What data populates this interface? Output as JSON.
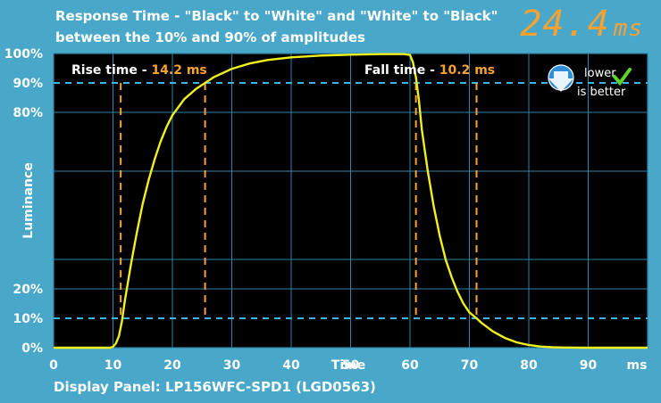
{
  "title_line1": "Response Time - \"Black\" to \"White\" and \"White\" to \"Black\"",
  "title_line2": "between the 10% and 90% of amplitudes",
  "big_value": "24.4",
  "big_unit": "ms",
  "footer": "Display Panel: LP156WFC-SPD1 (LGD0563)",
  "badge": {
    "line1": "lower",
    "line2": "is better"
  },
  "colors": {
    "background": "#49a7c9",
    "plot_bg": "#000000",
    "grid": "#2d86a8",
    "curve": "#f0f01e",
    "markers": "#f7a233",
    "threshold": "#3bb4e6"
  },
  "chart_data": {
    "type": "line",
    "xlabel": "Time",
    "xunit": "ms",
    "ylabel": "Luminance",
    "xlim": [
      0,
      100
    ],
    "ylim": [
      0,
      100
    ],
    "x_ticks": [
      0,
      10,
      20,
      30,
      40,
      50,
      60,
      70,
      80,
      90
    ],
    "y_ticks": [
      {
        "value": 0,
        "label": "0%"
      },
      {
        "value": 10,
        "label": "10%"
      },
      {
        "value": 20,
        "label": "20%"
      },
      {
        "value": 80,
        "label": "80%"
      },
      {
        "value": 90,
        "label": "90%"
      },
      {
        "value": 100,
        "label": "100%"
      }
    ],
    "grid": true,
    "thresholds": [
      10,
      90
    ],
    "rise": {
      "label": "Rise time - ",
      "value": "14.2 ms",
      "start": 11.3,
      "end": 25.5
    },
    "fall": {
      "label": "Fall time - ",
      "value": "10.2 ms",
      "start": 61.0,
      "end": 71.2
    },
    "series": [
      {
        "x": [
          0,
          9.5,
          10,
          10.5,
          11,
          11.5,
          12,
          13,
          14,
          15,
          16,
          17,
          18,
          19,
          20,
          22,
          24,
          25.5,
          27,
          30,
          33,
          36,
          40,
          45,
          50,
          55,
          59,
          60,
          60.5,
          61,
          61.5,
          62,
          63,
          64,
          65,
          66,
          67,
          68,
          69,
          70,
          71.2,
          72,
          74,
          76,
          78,
          80,
          82,
          84,
          86,
          90,
          100
        ],
        "y": [
          0,
          0,
          0.3,
          1.5,
          4,
          9,
          16,
          28,
          39,
          49,
          57,
          64,
          70,
          75,
          79,
          84.5,
          88,
          90,
          92,
          94.8,
          96.6,
          97.8,
          98.7,
          99.3,
          99.6,
          99.8,
          99.8,
          99.5,
          97,
          92,
          84,
          74,
          60,
          48,
          38,
          30,
          24,
          19,
          15,
          12,
          10,
          8.5,
          5.5,
          3.3,
          1.8,
          0.9,
          0.4,
          0.15,
          0.05,
          0,
          0
        ]
      }
    ]
  }
}
